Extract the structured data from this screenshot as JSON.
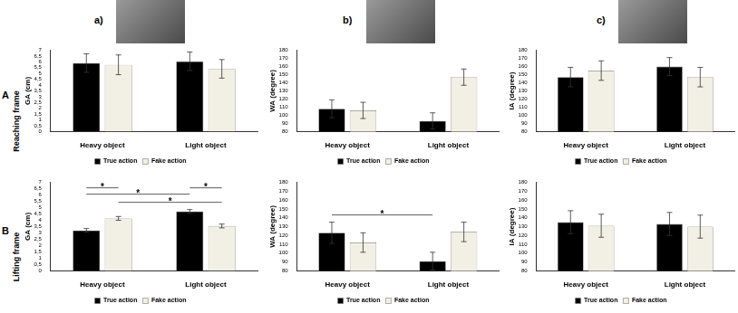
{
  "panel_labels": [
    "a)",
    "b)",
    "c)"
  ],
  "rows": [
    {
      "letter": "A",
      "label": "Reaching frame"
    },
    {
      "letter": "B",
      "label": "Lifting frame"
    }
  ],
  "chart_data": [
    {
      "type": "bar",
      "y_label": "GA (cm)",
      "categories": [
        "Heavy object",
        "Light object"
      ],
      "ylim": [
        0,
        7
      ],
      "yticks": [
        0,
        {
          "value": 0.5,
          "label": "0,5"
        },
        1,
        {
          "value": 1.5,
          "label": "1,5"
        },
        2,
        {
          "value": 2.5,
          "label": "2,5"
        },
        3,
        {
          "value": 3.5,
          "label": "3,5"
        },
        4,
        {
          "value": 4.5,
          "label": "4,5"
        },
        5,
        {
          "value": 5.5,
          "label": "5,5"
        },
        6,
        {
          "value": 6.5,
          "label": "6,5"
        },
        7
      ],
      "grid": false,
      "legend": "bottom",
      "series": [
        {
          "name": "True action",
          "color": "#000000",
          "values": [
            5.9,
            6.05
          ],
          "errors": [
            0.8,
            0.8
          ]
        },
        {
          "name": "Fake action",
          "color": "#f2efe4",
          "values": [
            5.75,
            5.4
          ],
          "errors": [
            0.85,
            0.8
          ]
        }
      ],
      "significance": []
    },
    {
      "type": "bar",
      "y_label": "WA (degree)",
      "categories": [
        "Heavy object",
        "Light object"
      ],
      "ylim": [
        80,
        180
      ],
      "yticks": [
        80,
        90,
        100,
        110,
        120,
        130,
        140,
        150,
        160,
        170,
        180
      ],
      "grid": false,
      "legend": "bottom",
      "series": [
        {
          "name": "True action",
          "color": "#000000",
          "values": [
            108,
            93
          ],
          "errors": [
            11,
            10
          ]
        },
        {
          "name": "Fake action",
          "color": "#f2efe4",
          "values": [
            106,
            147
          ],
          "errors": [
            10,
            10
          ]
        }
      ],
      "significance": []
    },
    {
      "type": "bar",
      "y_label": "IA (degree)",
      "categories": [
        "Heavy object",
        "Light object"
      ],
      "ylim": [
        80,
        180
      ],
      "yticks": [
        80,
        90,
        100,
        110,
        120,
        130,
        140,
        150,
        160,
        170,
        180
      ],
      "grid": false,
      "legend": "bottom",
      "series": [
        {
          "name": "True action",
          "color": "#000000",
          "values": [
            147,
            160
          ],
          "errors": [
            12,
            11
          ]
        },
        {
          "name": "Fake action",
          "color": "#f2efe4",
          "values": [
            155,
            147
          ],
          "errors": [
            12,
            12
          ]
        }
      ],
      "significance": []
    },
    {
      "type": "bar",
      "y_label": "GA (cm)",
      "categories": [
        "Heavy object",
        "Light object"
      ],
      "ylim": [
        0,
        7
      ],
      "yticks": [
        0,
        {
          "value": 0.5,
          "label": "0,5"
        },
        1,
        {
          "value": 1.5,
          "label": "1,5"
        },
        2,
        {
          "value": 2.5,
          "label": "2,5"
        },
        3,
        {
          "value": 3.5,
          "label": "3,5"
        },
        4,
        {
          "value": 4.5,
          "label": "4,5"
        },
        5,
        {
          "value": 5.5,
          "label": "5,5"
        },
        6,
        {
          "value": 6.5,
          "label": "6,5"
        },
        7
      ],
      "grid": false,
      "legend": "bottom",
      "series": [
        {
          "name": "True action",
          "color": "#000000",
          "values": [
            3.2,
            4.7
          ],
          "errors": [
            0.15,
            0.15
          ]
        },
        {
          "name": "Fake action",
          "color": "#f2efe4",
          "values": [
            4.15,
            3.55
          ],
          "errors": [
            0.15,
            0.15
          ]
        }
      ],
      "significance": [
        {
          "from": [
            0,
            0
          ],
          "to": [
            0,
            1
          ],
          "label": "*"
        },
        {
          "from": [
            1,
            0
          ],
          "to": [
            1,
            1
          ],
          "label": "*"
        },
        {
          "from": [
            0,
            1
          ],
          "to": [
            1,
            1
          ],
          "label": "*"
        },
        {
          "from": [
            0,
            0
          ],
          "to": [
            1,
            0
          ],
          "label": "*"
        }
      ]
    },
    {
      "type": "bar",
      "y_label": "WA (degree)",
      "categories": [
        "Heavy object",
        "Light object"
      ],
      "ylim": [
        80,
        180
      ],
      "yticks": [
        80,
        90,
        100,
        110,
        120,
        130,
        140,
        150,
        160,
        170,
        180
      ],
      "grid": false,
      "legend": "bottom",
      "series": [
        {
          "name": "True action",
          "color": "#000000",
          "values": [
            123,
            91
          ],
          "errors": [
            12,
            10
          ]
        },
        {
          "name": "Fake action",
          "color": "#f2efe4",
          "values": [
            112,
            124
          ],
          "errors": [
            11,
            11
          ]
        }
      ],
      "significance": [
        {
          "from": [
            0,
            0
          ],
          "to": [
            1,
            0
          ],
          "label": "*"
        }
      ]
    },
    {
      "type": "bar",
      "y_label": "IA (degree)",
      "categories": [
        "Heavy object",
        "Light object"
      ],
      "ylim": [
        80,
        180
      ],
      "yticks": [
        80,
        90,
        100,
        110,
        120,
        130,
        140,
        150,
        160,
        170,
        180
      ],
      "grid": false,
      "legend": "bottom",
      "series": [
        {
          "name": "True action",
          "color": "#000000",
          "values": [
            135,
            133
          ],
          "errors": [
            13,
            13
          ]
        },
        {
          "name": "Fake action",
          "color": "#f2efe4",
          "values": [
            131,
            130
          ],
          "errors": [
            13,
            13
          ]
        }
      ],
      "significance": []
    }
  ]
}
